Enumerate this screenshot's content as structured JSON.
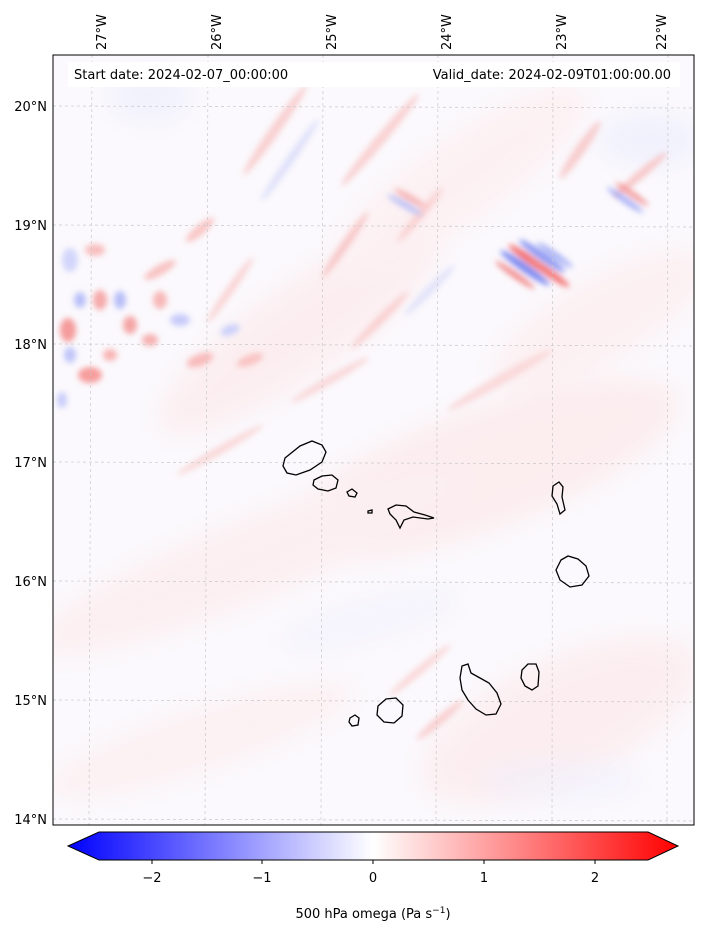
{
  "header": {
    "start_label": "Start date: 2024-02-07_00:00:00",
    "valid_label": "Valid_date: 2024-02-09T01:00:00.00"
  },
  "map": {
    "lon_labels": [
      "27°W",
      "26°W",
      "25°W",
      "24°W",
      "23°W",
      "22°W"
    ],
    "lat_labels": [
      "20°N",
      "19°N",
      "18°N",
      "17°N",
      "16°N",
      "15°N",
      "14°N"
    ],
    "colors": {
      "negative": "#0000ff",
      "neutral": "#ffffff",
      "positive": "#ff0000",
      "coast": "#000000"
    },
    "islands": [
      "Santo Antão",
      "São Vicente",
      "Santa Luzia",
      "Branco",
      "São Nicolau",
      "Sal",
      "Boa Vista",
      "Santiago",
      "Maio",
      "Fogo",
      "Brava"
    ]
  },
  "colorbar": {
    "ticks": [
      "−2",
      "−1",
      "0",
      "1",
      "2"
    ],
    "label_main": "500 hPa omega (Pa s",
    "label_sup": "−1",
    "label_end": ")",
    "range": [
      -2.6,
      2.6
    ],
    "colors": {
      "min": "#0000ff",
      "mid": "#ffffff",
      "max": "#ff0000"
    }
  }
}
